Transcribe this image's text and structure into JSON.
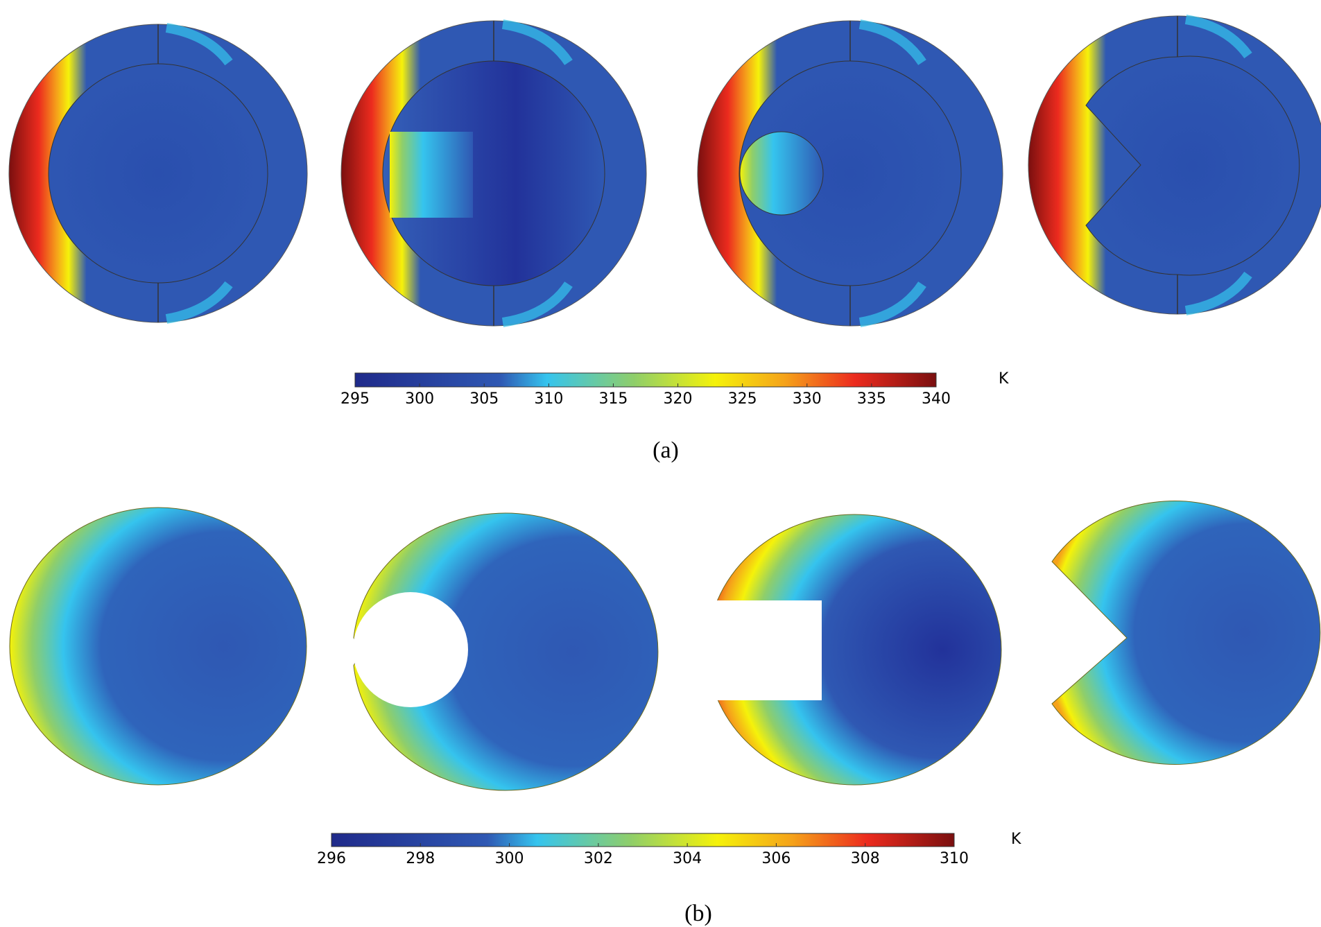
{
  "figure": {
    "panel_a": {
      "caption": "(a)",
      "colorbar": {
        "unit": "K",
        "min": 295,
        "max": 340,
        "ticks": [
          "295",
          "300",
          "305",
          "310",
          "315",
          "320",
          "325",
          "330",
          "335",
          "340"
        ]
      },
      "shapes": [
        {
          "name": "plain-disk",
          "hole": "none"
        },
        {
          "name": "rectangular-hole",
          "hole": "rectangle"
        },
        {
          "name": "circular-hole",
          "hole": "circle"
        },
        {
          "name": "v-notch",
          "hole": "triangle"
        }
      ]
    },
    "panel_b": {
      "caption": "(b)",
      "colorbar": {
        "unit": "K",
        "min": 296,
        "max": 310,
        "ticks": [
          "296",
          "298",
          "300",
          "302",
          "304",
          "306",
          "308",
          "310"
        ]
      },
      "shapes": [
        {
          "name": "plain-disk",
          "hole": "none"
        },
        {
          "name": "circular-notch",
          "hole": "circle"
        },
        {
          "name": "rectangular-notch",
          "hole": "rectangle"
        },
        {
          "name": "v-notch",
          "hole": "triangle"
        }
      ]
    },
    "colormap": [
      "#1f2a8a",
      "#2f58b3",
      "#35c4ee",
      "#8fce6a",
      "#f5f20a",
      "#f5a21a",
      "#ec2b1e",
      "#7a0f0f"
    ]
  }
}
